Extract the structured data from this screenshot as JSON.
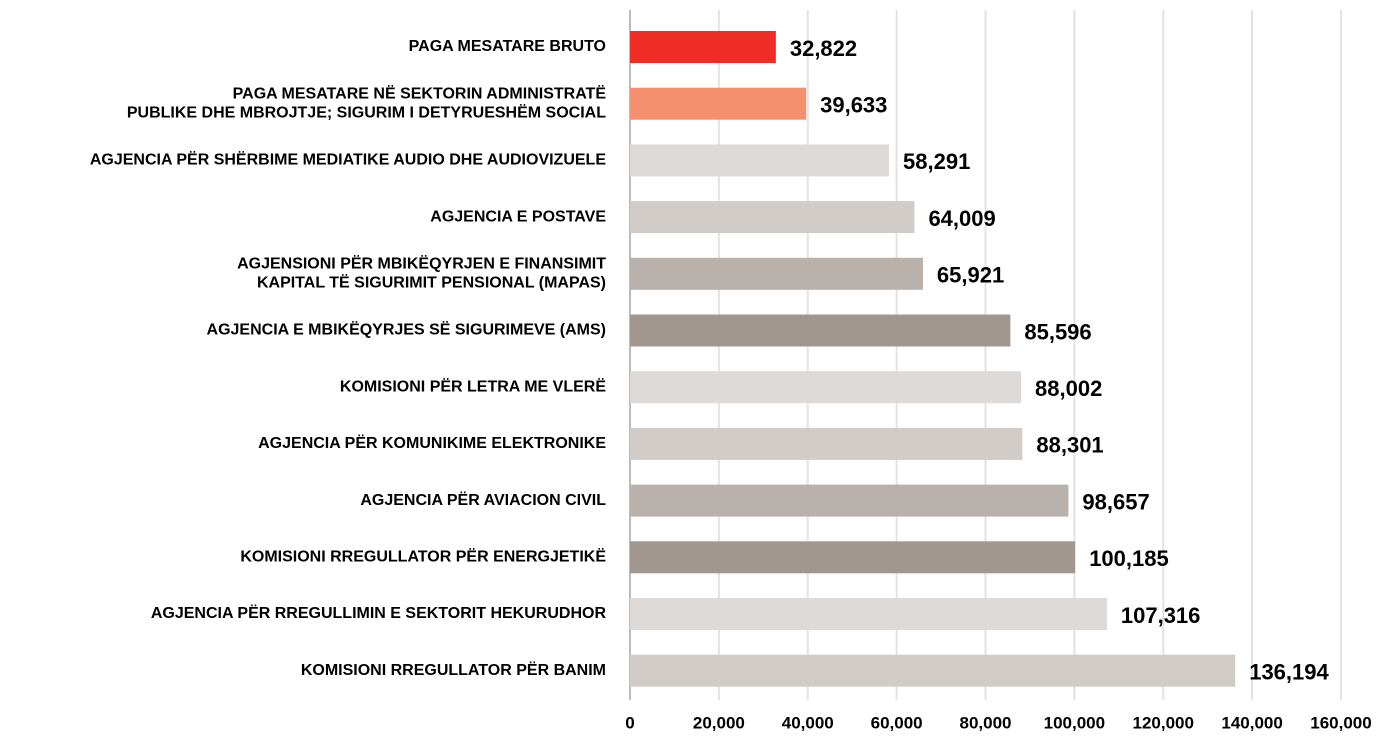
{
  "chart_data": {
    "type": "bar",
    "orientation": "horizontal",
    "categories": [
      [
        "PAGA MESATARE BRUTO"
      ],
      [
        "PAGA MESATARE NË SEKTORIN ADMINISTRATË",
        "PUBLIKE DHE MBROJTJE; SIGURIM I DETYRUESHËM SOCIAL"
      ],
      [
        "AGJENCIA PËR SHËRBIME MEDIATIKE AUDIO DHE AUDIOVIZUELE"
      ],
      [
        "AGJENCIA E POSTAVE"
      ],
      [
        "AGJENSIONI PËR MBIKËQYRJEN E FINANSIMIT",
        "KAPITAL TË SIGURIMIT PENSIONAL (MAPAS)"
      ],
      [
        "AGJENCIA E MBIKËQYRJES SË SIGURIMEVE (AMS)"
      ],
      [
        "KOMISIONI PËR LETRA ME VLERË"
      ],
      [
        "AGJENCIA PËR KOMUNIKIME ELEKTRONIKE"
      ],
      [
        "AGJENCIA PËR AVIACION CIVIL"
      ],
      [
        "KOMISIONI RREGULLATOR PËR ENERGJETIKË"
      ],
      [
        "AGJENCIA PËR RREGULLIMIN E SEKTORIT HEKURUDHOR"
      ],
      [
        "KOMISIONI RREGULLATOR PËR BANIM"
      ]
    ],
    "values": [
      32822,
      39633,
      58291,
      64009,
      65921,
      85596,
      88002,
      88301,
      98657,
      100185,
      107316,
      136194
    ],
    "value_labels": [
      "32,822",
      "39,633",
      "58,291",
      "64,009",
      "65,921",
      "85,596",
      "88,002",
      "88,301",
      "98,657",
      "100,185",
      "107,316",
      "136,194"
    ],
    "colors": [
      "#ee2e26",
      "#f5906f",
      "#dddad7",
      "#d1ccc8",
      "#b9b1ab",
      "#a2978e",
      "#dddad7",
      "#d1ccc8",
      "#b9b1ab",
      "#a2978e",
      "#dddad7",
      "#d1ccc8"
    ],
    "xlim": [
      0,
      160000
    ],
    "xticks": [
      0,
      {
        "value": 20000,
        "label": "20,000"
      },
      {
        "value": 40000,
        "label": "40,000"
      },
      {
        "value": 60000,
        "label": "60,000"
      },
      {
        "value": 80000,
        "label": "80,000"
      },
      {
        "value": 100000,
        "label": "100,000"
      },
      {
        "value": 120000,
        "label": "120,000"
      },
      {
        "value": 140000,
        "label": "140,000"
      },
      {
        "value": 160000,
        "label": "160,000"
      }
    ],
    "grid": true
  }
}
